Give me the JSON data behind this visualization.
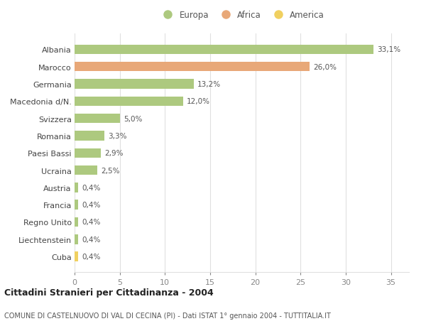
{
  "categories": [
    "Albania",
    "Marocco",
    "Germania",
    "Macedonia d/N.",
    "Svizzera",
    "Romania",
    "Paesi Bassi",
    "Ucraina",
    "Austria",
    "Francia",
    "Regno Unito",
    "Liechtenstein",
    "Cuba"
  ],
  "values": [
    33.1,
    26.0,
    13.2,
    12.0,
    5.0,
    3.3,
    2.9,
    2.5,
    0.4,
    0.4,
    0.4,
    0.4,
    0.4
  ],
  "labels": [
    "33,1%",
    "26,0%",
    "13,2%",
    "12,0%",
    "5,0%",
    "3,3%",
    "2,9%",
    "2,5%",
    "0,4%",
    "0,4%",
    "0,4%",
    "0,4%",
    "0,4%"
  ],
  "colors": [
    "#adc97f",
    "#e8a878",
    "#adc97f",
    "#adc97f",
    "#adc97f",
    "#adc97f",
    "#adc97f",
    "#adc97f",
    "#adc97f",
    "#adc97f",
    "#adc97f",
    "#adc97f",
    "#f0d060"
  ],
  "legend_labels": [
    "Europa",
    "Africa",
    "America"
  ],
  "legend_colors": [
    "#adc97f",
    "#e8a878",
    "#f0d060"
  ],
  "title": "Cittadini Stranieri per Cittadinanza - 2004",
  "subtitle": "COMUNE DI CASTELNUOVO DI VAL DI CECINA (PI) - Dati ISTAT 1° gennaio 2004 - TUTTITALIA.IT",
  "xlim": [
    0,
    37
  ],
  "xticks": [
    0,
    5,
    10,
    15,
    20,
    25,
    30,
    35
  ],
  "background_color": "#ffffff",
  "grid_color": "#e0e0e0",
  "bar_height": 0.55
}
